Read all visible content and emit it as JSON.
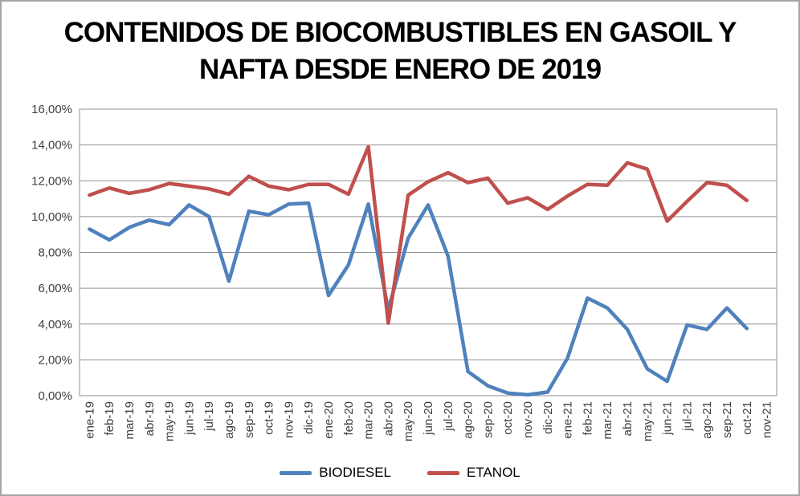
{
  "title": {
    "line1": "CONTENIDOS DE BIOCOMBUSTIBLES EN GASOIL Y",
    "line2": "NAFTA DESDE ENERO DE 2019"
  },
  "chart_data": {
    "type": "line",
    "title": "CONTENIDOS DE BIOCOMBUSTIBLES EN GASOIL Y NAFTA DESDE ENERO DE 2019",
    "xlabel": "",
    "ylabel": "",
    "grid": true,
    "legend_position": "bottom",
    "y_axis": {
      "min": 0,
      "max": 16,
      "step": 2,
      "tick_labels": [
        "0,00%",
        "2,00%",
        "4,00%",
        "6,00%",
        "8,00%",
        "10,00%",
        "12,00%",
        "14,00%",
        "16,00%"
      ],
      "unit": "%"
    },
    "categories": [
      "ene-19",
      "feb-19",
      "mar-19",
      "abr-19",
      "may-19",
      "jun-19",
      "jul-19",
      "ago-19",
      "sep-19",
      "oct-19",
      "nov-19",
      "dic-19",
      "ene-20",
      "feb-20",
      "mar-20",
      "abr-20",
      "may-20",
      "jun-20",
      "jul-20",
      "ago-20",
      "sep-20",
      "oct-20",
      "nov-20",
      "dic-20",
      "ene-21",
      "feb-21",
      "mar-21",
      "abr-21",
      "may-21",
      "jun-21",
      "jul-21",
      "ago-21",
      "sep-21",
      "oct-21",
      "nov-21"
    ],
    "series": [
      {
        "name": "BIODIESEL",
        "color": "#4F81BD",
        "values": [
          9.3,
          8.7,
          9.4,
          9.8,
          9.55,
          10.65,
          10.0,
          6.4,
          10.3,
          10.1,
          10.7,
          10.75,
          5.6,
          7.3,
          10.7,
          4.8,
          8.8,
          10.65,
          7.8,
          1.35,
          0.55,
          0.15,
          0.05,
          0.2,
          2.1,
          5.45,
          4.9,
          3.7,
          1.5,
          0.8,
          3.95,
          3.7,
          4.9,
          3.75,
          null
        ]
      },
      {
        "name": "ETANOL",
        "color": "#C0504D",
        "values": [
          11.2,
          11.6,
          11.3,
          11.5,
          11.85,
          11.7,
          11.55,
          11.25,
          12.25,
          11.7,
          11.5,
          11.8,
          11.8,
          11.25,
          13.9,
          4.05,
          11.2,
          11.95,
          12.45,
          11.9,
          12.15,
          10.75,
          11.05,
          10.4,
          11.15,
          11.8,
          11.75,
          13.0,
          12.65,
          9.75,
          10.85,
          11.9,
          11.75,
          10.9,
          null
        ]
      }
    ],
    "style": {
      "grid_color": "#919191",
      "plot_border_color": "#919191",
      "tick_label_color": "#3f3f3f",
      "line_width": 4.5
    }
  }
}
